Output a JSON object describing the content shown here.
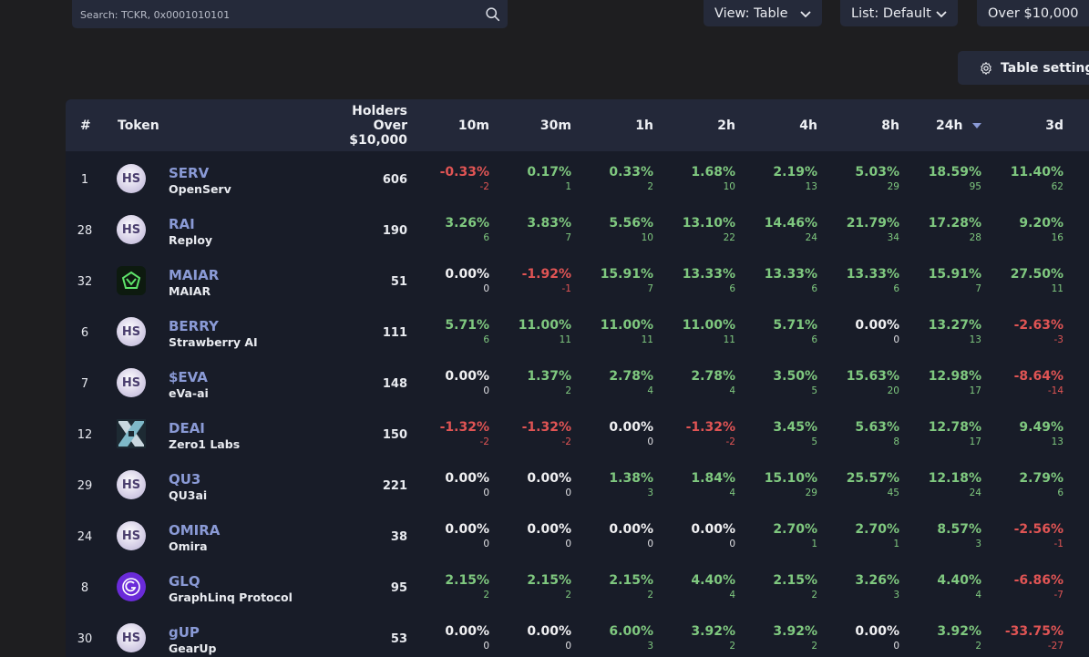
{
  "search": {
    "placeholder": "Search: TCKR, 0x0001010101"
  },
  "controls": {
    "view": "View: Table",
    "list": "List: Default",
    "filter": "Over $10,000",
    "table_settings": "Table settings"
  },
  "table": {
    "headers": {
      "rank": "#",
      "token": "Token",
      "holders_line1": "Holders",
      "holders_line2": "Over",
      "holders_line3": "$10,000",
      "c10m": "10m",
      "c30m": "30m",
      "c1h": "1h",
      "c2h": "2h",
      "c4h": "4h",
      "c8h": "8h",
      "c24h": "24h",
      "c3d": "3d"
    },
    "rows": [
      {
        "rank": "1",
        "avatar": "HS",
        "logo": "hs",
        "ticker": "SERV",
        "name": "OpenServ",
        "holders": "606",
        "cells": [
          [
            "-0.33%",
            "-2",
            "neg"
          ],
          [
            "0.17%",
            "1",
            "pos"
          ],
          [
            "0.33%",
            "2",
            "pos"
          ],
          [
            "1.68%",
            "10",
            "pos"
          ],
          [
            "2.19%",
            "13",
            "pos"
          ],
          [
            "5.03%",
            "29",
            "pos"
          ],
          [
            "18.59%",
            "95",
            "pos"
          ],
          [
            "11.40%",
            "62",
            "pos"
          ]
        ]
      },
      {
        "rank": "28",
        "avatar": "HS",
        "logo": "hs",
        "ticker": "RAI",
        "name": "Reploy",
        "holders": "190",
        "cells": [
          [
            "3.26%",
            "6",
            "pos"
          ],
          [
            "3.83%",
            "7",
            "pos"
          ],
          [
            "5.56%",
            "10",
            "pos"
          ],
          [
            "13.10%",
            "22",
            "pos"
          ],
          [
            "14.46%",
            "24",
            "pos"
          ],
          [
            "21.79%",
            "34",
            "pos"
          ],
          [
            "17.28%",
            "28",
            "pos"
          ],
          [
            "9.20%",
            "16",
            "pos"
          ]
        ]
      },
      {
        "rank": "32",
        "avatar": "",
        "logo": "maiar",
        "ticker": "MAIAR",
        "name": "MAIAR",
        "holders": "51",
        "cells": [
          [
            "0.00%",
            "0",
            "zer"
          ],
          [
            "-1.92%",
            "-1",
            "neg"
          ],
          [
            "15.91%",
            "7",
            "pos"
          ],
          [
            "13.33%",
            "6",
            "pos"
          ],
          [
            "13.33%",
            "6",
            "pos"
          ],
          [
            "13.33%",
            "6",
            "pos"
          ],
          [
            "15.91%",
            "7",
            "pos"
          ],
          [
            "27.50%",
            "11",
            "pos"
          ]
        ]
      },
      {
        "rank": "6",
        "avatar": "HS",
        "logo": "hs",
        "ticker": "BERRY",
        "name": "Strawberry AI",
        "holders": "111",
        "cells": [
          [
            "5.71%",
            "6",
            "pos"
          ],
          [
            "11.00%",
            "11",
            "pos"
          ],
          [
            "11.00%",
            "11",
            "pos"
          ],
          [
            "11.00%",
            "11",
            "pos"
          ],
          [
            "5.71%",
            "6",
            "pos"
          ],
          [
            "0.00%",
            "0",
            "zer"
          ],
          [
            "13.27%",
            "13",
            "pos"
          ],
          [
            "-2.63%",
            "-3",
            "neg"
          ]
        ]
      },
      {
        "rank": "7",
        "avatar": "HS",
        "logo": "hs",
        "ticker": "$EVA",
        "name": "eVa-ai",
        "holders": "148",
        "cells": [
          [
            "0.00%",
            "0",
            "zer"
          ],
          [
            "1.37%",
            "2",
            "pos"
          ],
          [
            "2.78%",
            "4",
            "pos"
          ],
          [
            "2.78%",
            "4",
            "pos"
          ],
          [
            "3.50%",
            "5",
            "pos"
          ],
          [
            "15.63%",
            "20",
            "pos"
          ],
          [
            "12.98%",
            "17",
            "pos"
          ],
          [
            "-8.64%",
            "-14",
            "neg"
          ]
        ]
      },
      {
        "rank": "12",
        "avatar": "",
        "logo": "deai",
        "ticker": "DEAI",
        "name": "Zero1 Labs",
        "holders": "150",
        "cells": [
          [
            "-1.32%",
            "-2",
            "neg"
          ],
          [
            "-1.32%",
            "-2",
            "neg"
          ],
          [
            "0.00%",
            "0",
            "zer"
          ],
          [
            "-1.32%",
            "-2",
            "neg"
          ],
          [
            "3.45%",
            "5",
            "pos"
          ],
          [
            "5.63%",
            "8",
            "pos"
          ],
          [
            "12.78%",
            "17",
            "pos"
          ],
          [
            "9.49%",
            "13",
            "pos"
          ]
        ]
      },
      {
        "rank": "29",
        "avatar": "HS",
        "logo": "hs",
        "ticker": "QU3",
        "name": "QU3ai",
        "holders": "221",
        "cells": [
          [
            "0.00%",
            "0",
            "zer"
          ],
          [
            "0.00%",
            "0",
            "zer"
          ],
          [
            "1.38%",
            "3",
            "pos"
          ],
          [
            "1.84%",
            "4",
            "pos"
          ],
          [
            "15.10%",
            "29",
            "pos"
          ],
          [
            "25.57%",
            "45",
            "pos"
          ],
          [
            "12.18%",
            "24",
            "pos"
          ],
          [
            "2.79%",
            "6",
            "pos"
          ]
        ]
      },
      {
        "rank": "24",
        "avatar": "HS",
        "logo": "hs",
        "ticker": "OMIRA",
        "name": "Omira",
        "holders": "38",
        "cells": [
          [
            "0.00%",
            "0",
            "zer"
          ],
          [
            "0.00%",
            "0",
            "zer"
          ],
          [
            "0.00%",
            "0",
            "zer"
          ],
          [
            "0.00%",
            "0",
            "zer"
          ],
          [
            "2.70%",
            "1",
            "pos"
          ],
          [
            "2.70%",
            "1",
            "pos"
          ],
          [
            "8.57%",
            "3",
            "pos"
          ],
          [
            "-2.56%",
            "-1",
            "neg"
          ]
        ]
      },
      {
        "rank": "8",
        "avatar": "",
        "logo": "glq",
        "ticker": "GLQ",
        "name": "GraphLinq Protocol",
        "holders": "95",
        "cells": [
          [
            "2.15%",
            "2",
            "pos"
          ],
          [
            "2.15%",
            "2",
            "pos"
          ],
          [
            "2.15%",
            "2",
            "pos"
          ],
          [
            "4.40%",
            "4",
            "pos"
          ],
          [
            "2.15%",
            "2",
            "pos"
          ],
          [
            "3.26%",
            "3",
            "pos"
          ],
          [
            "4.40%",
            "4",
            "pos"
          ],
          [
            "-6.86%",
            "-7",
            "neg"
          ]
        ]
      },
      {
        "rank": "30",
        "avatar": "HS",
        "logo": "hs",
        "ticker": "gUP",
        "name": "GearUp",
        "holders": "53",
        "cells": [
          [
            "0.00%",
            "0",
            "zer"
          ],
          [
            "0.00%",
            "0",
            "zer"
          ],
          [
            "6.00%",
            "3",
            "pos"
          ],
          [
            "3.92%",
            "2",
            "pos"
          ],
          [
            "3.92%",
            "2",
            "pos"
          ],
          [
            "0.00%",
            "0",
            "zer"
          ],
          [
            "3.92%",
            "2",
            "pos"
          ],
          [
            "-33.75%",
            "-27",
            "neg"
          ]
        ]
      }
    ]
  }
}
